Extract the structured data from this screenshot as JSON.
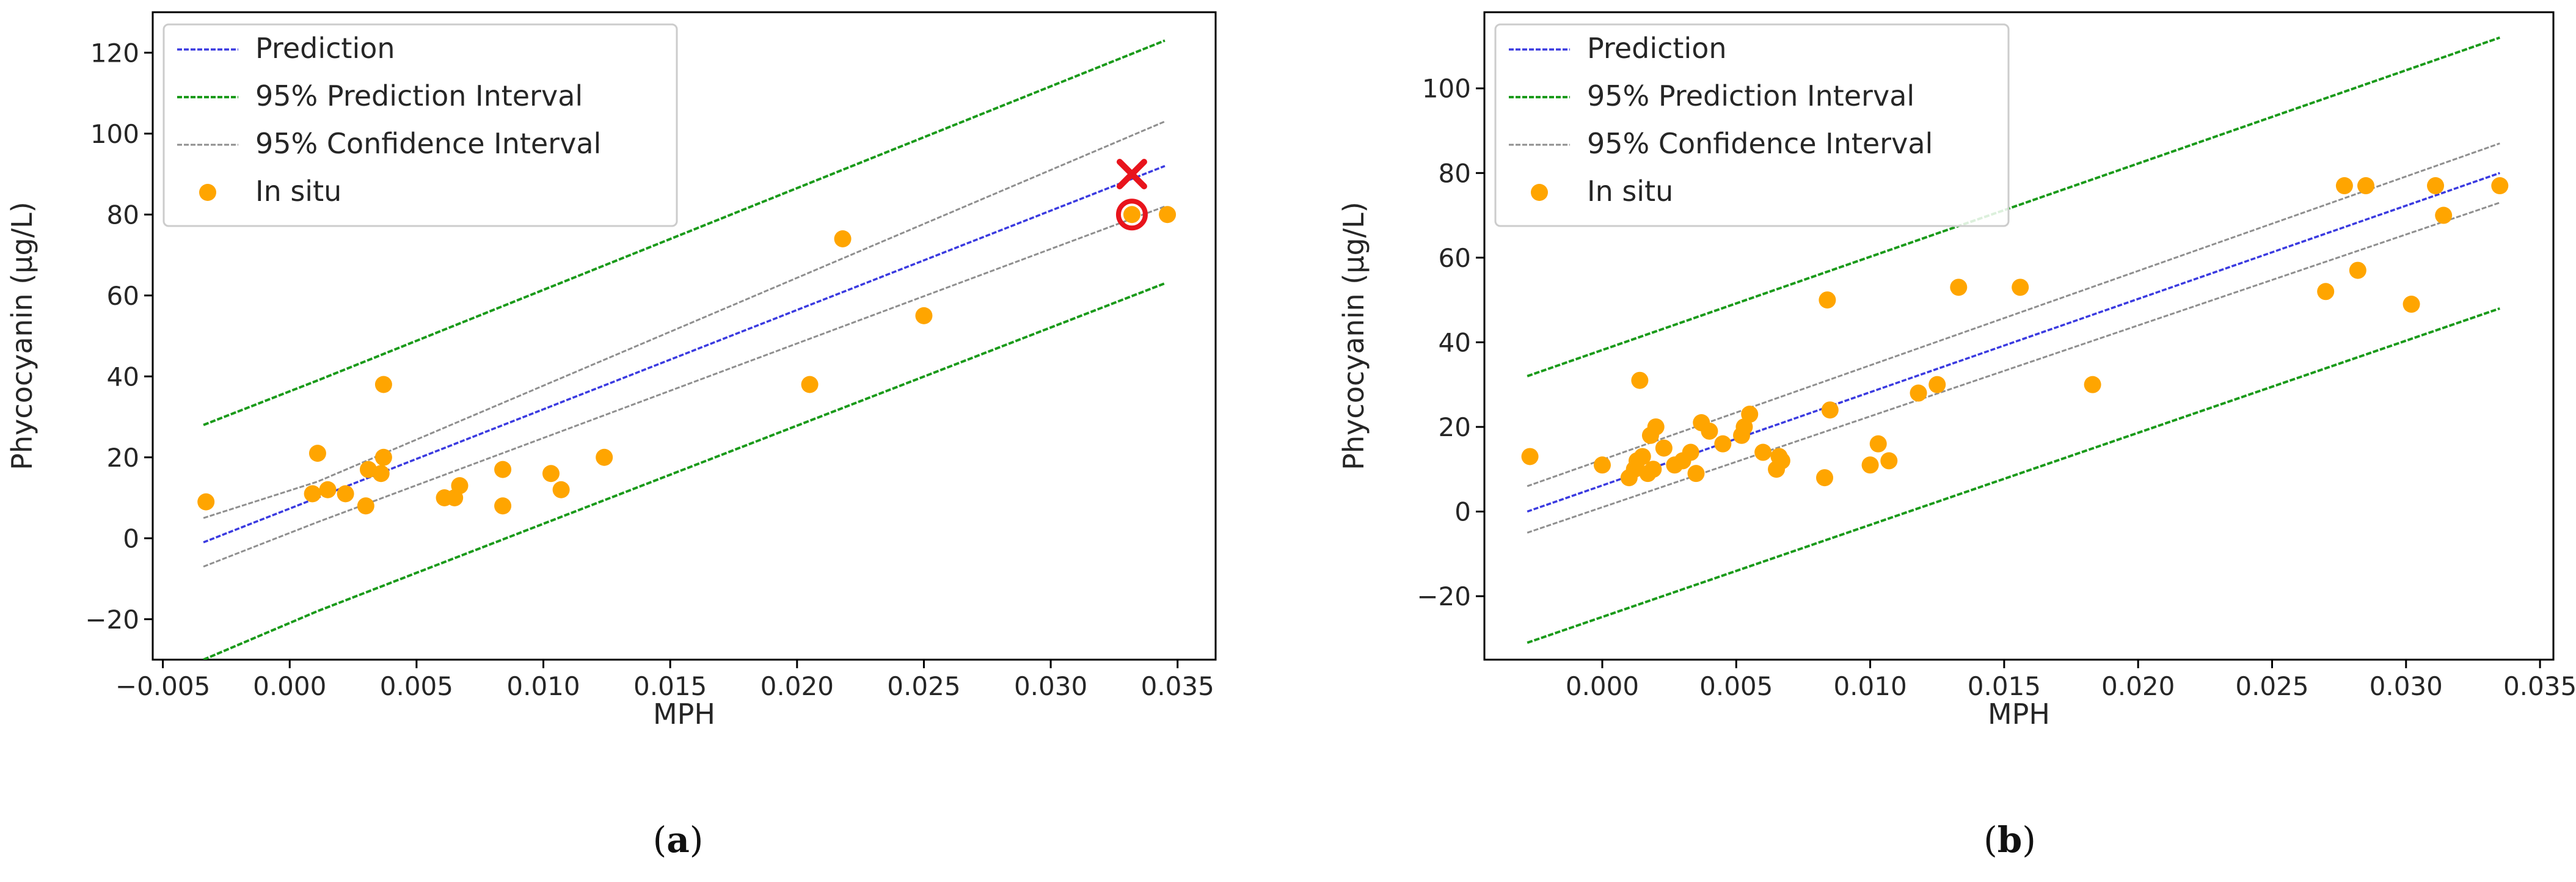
{
  "chart_data": [
    {
      "id": "a",
      "type": "scatter",
      "caption_open": "(",
      "caption_letter": "a",
      "caption_close": ")",
      "xlabel": "MPH",
      "ylabel": "Phycocyanin (µg/L)",
      "xlim": [
        -0.0054,
        0.0365
      ],
      "ylim": [
        -30,
        130
      ],
      "xticks": [
        -0.005,
        0.0,
        0.005,
        0.01,
        0.015,
        0.02,
        0.025,
        0.03,
        0.035
      ],
      "xtick_labels": [
        "−0.005",
        "0.000",
        "0.005",
        "0.010",
        "0.015",
        "0.020",
        "0.025",
        "0.030",
        "0.035"
      ],
      "yticks": [
        -20,
        0,
        20,
        40,
        60,
        80,
        100,
        120
      ],
      "ytick_labels": [
        "−20",
        "0",
        "20",
        "40",
        "60",
        "80",
        "100",
        "120"
      ],
      "legend": [
        "Prediction",
        "95% Prediction Interval",
        "95% Confidence Interval",
        "In situ"
      ],
      "colors": {
        "prediction": "#3a3ae0",
        "pi": "#1a9a1a",
        "ci": "#8f8f8f",
        "points": "#ffa500",
        "highlight": "#e8141c"
      },
      "prediction_line": {
        "x": [
          -0.0034,
          0.0345
        ],
        "y": [
          -1,
          92
        ]
      },
      "pi_upper": {
        "x": [
          -0.0034,
          0.0011,
          0.0345
        ],
        "y": [
          28,
          39,
          123
        ]
      },
      "pi_lower": {
        "x": [
          -0.0034,
          0.0011,
          0.0345
        ],
        "y": [
          -30,
          -18,
          63
        ]
      },
      "ci_upper": {
        "x": [
          -0.0034,
          0.0011,
          0.0345
        ],
        "y": [
          5,
          14,
          103
        ]
      },
      "ci_lower": {
        "x": [
          -0.0034,
          0.0011,
          0.0345
        ],
        "y": [
          -7,
          4,
          82
        ]
      },
      "points": {
        "x": [
          -0.0033,
          0.0011,
          0.0009,
          0.0015,
          0.0022,
          0.003,
          0.0031,
          0.0036,
          0.0037,
          0.0037,
          0.0061,
          0.0065,
          0.0067,
          0.0084,
          0.0084,
          0.0103,
          0.0107,
          0.0124,
          0.0205,
          0.0218,
          0.025,
          0.0332,
          0.0346
        ],
        "y": [
          9,
          21,
          11,
          12,
          11,
          8,
          17,
          16,
          20,
          38,
          10,
          10,
          13,
          8,
          17,
          16,
          12,
          20,
          38,
          74,
          55,
          80,
          80
        ]
      },
      "outlier_x_marker": {
        "x": 0.0332,
        "y": 90
      },
      "circled_point": {
        "x": 0.0332,
        "y": 80
      }
    },
    {
      "id": "b",
      "type": "scatter",
      "caption_open": "(",
      "caption_letter": "b",
      "caption_close": ")",
      "xlabel": "MPH",
      "ylabel": "Phycocyanin (µg/L)",
      "xlim": [
        -0.0044,
        0.0355
      ],
      "ylim": [
        -35,
        118
      ],
      "xticks": [
        0.0,
        0.005,
        0.01,
        0.015,
        0.02,
        0.025,
        0.03,
        0.035
      ],
      "xtick_labels": [
        "0.000",
        "0.005",
        "0.010",
        "0.015",
        "0.020",
        "0.025",
        "0.030",
        "0.035"
      ],
      "yticks": [
        -20,
        0,
        20,
        40,
        60,
        80,
        100
      ],
      "ytick_labels": [
        "−20",
        "0",
        "20",
        "40",
        "60",
        "80",
        "100"
      ],
      "legend": [
        "Prediction",
        "95% Prediction Interval",
        "95% Confidence Interval",
        "In situ"
      ],
      "colors": {
        "prediction": "#3a3ae0",
        "pi": "#1a9a1a",
        "ci": "#8f8f8f",
        "points": "#ffa500"
      },
      "prediction_line": {
        "x": [
          -0.0028,
          0.0335
        ],
        "y": [
          0,
          80
        ]
      },
      "pi_upper": {
        "x": [
          -0.0028,
          0.0335
        ],
        "y": [
          32,
          112
        ]
      },
      "pi_lower": {
        "x": [
          -0.0028,
          0.0335
        ],
        "y": [
          -31,
          48
        ]
      },
      "ci_upper": {
        "x": [
          -0.0028,
          0.0335
        ],
        "y": [
          6,
          87
        ]
      },
      "ci_lower": {
        "x": [
          -0.0028,
          0.0335
        ],
        "y": [
          -5,
          73
        ]
      },
      "points": {
        "x": [
          -0.0027,
          0.0,
          0.001,
          0.0012,
          0.0013,
          0.0014,
          0.0015,
          0.0017,
          0.0018,
          0.0019,
          0.002,
          0.0023,
          0.0027,
          0.003,
          0.0033,
          0.0035,
          0.0037,
          0.004,
          0.0045,
          0.0052,
          0.0053,
          0.0055,
          0.006,
          0.0065,
          0.0066,
          0.0067,
          0.0083,
          0.0084,
          0.0085,
          0.01,
          0.0103,
          0.0107,
          0.0118,
          0.0125,
          0.0133,
          0.0156,
          0.0183,
          0.027,
          0.0277,
          0.0282,
          0.0285,
          0.0302,
          0.0311,
          0.0314,
          0.0335
        ],
        "y": [
          13,
          11,
          8,
          10,
          12,
          31,
          13,
          9,
          18,
          10,
          20,
          15,
          11,
          12,
          14,
          9,
          21,
          19,
          16,
          18,
          20,
          23,
          14,
          10,
          13,
          12,
          8,
          50,
          24,
          11,
          16,
          12,
          28,
          30,
          53,
          53,
          30,
          52,
          77,
          57,
          77,
          49,
          77,
          70,
          77
        ]
      }
    }
  ]
}
